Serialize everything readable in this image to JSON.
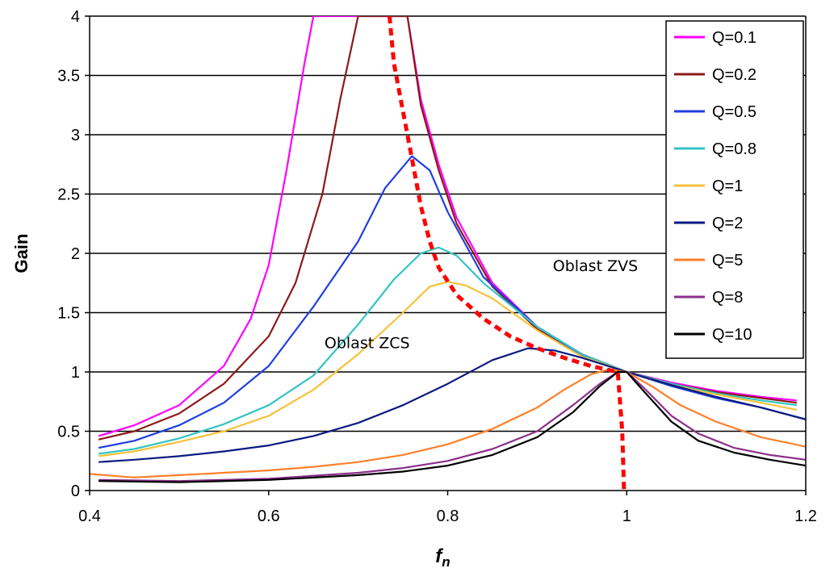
{
  "chart_data": {
    "type": "line",
    "xlabel": "f",
    "xlabel_sub": "n",
    "ylabel": "Gain",
    "xlim": [
      0.4,
      1.2
    ],
    "ylim": [
      0,
      4
    ],
    "x_ticks": [
      "0.4",
      "0.6",
      "0.8",
      "1",
      "1.2"
    ],
    "y_ticks": [
      "0",
      "0.5",
      "1",
      "1.5",
      "2",
      "2.5",
      "3",
      "3.5",
      "4"
    ],
    "grid": "horizontal",
    "legend_position": "right",
    "annotations": [
      {
        "text": "Oblast ZVS",
        "x": 0.965,
        "y": 1.85
      },
      {
        "text": "Oblast ZCS",
        "x": 0.71,
        "y": 1.2
      }
    ],
    "series": [
      {
        "name": "Q=0.1",
        "color": "#ff00ff",
        "points": [
          [
            0.41,
            0.46
          ],
          [
            0.45,
            0.55
          ],
          [
            0.5,
            0.72
          ],
          [
            0.55,
            1.05
          ],
          [
            0.58,
            1.45
          ],
          [
            0.6,
            1.9
          ],
          [
            0.62,
            2.7
          ],
          [
            0.64,
            3.6
          ],
          [
            0.65,
            4.0
          ],
          [
            0.755,
            4.0
          ],
          [
            0.77,
            3.3
          ],
          [
            0.79,
            2.75
          ],
          [
            0.81,
            2.3
          ],
          [
            0.85,
            1.75
          ],
          [
            0.9,
            1.38
          ],
          [
            0.95,
            1.15
          ],
          [
            1.0,
            1.0
          ],
          [
            1.05,
            0.91
          ],
          [
            1.1,
            0.84
          ],
          [
            1.15,
            0.79
          ],
          [
            1.19,
            0.76
          ]
        ]
      },
      {
        "name": "Q=0.2",
        "color": "#8b1a1a",
        "points": [
          [
            0.41,
            0.43
          ],
          [
            0.45,
            0.5
          ],
          [
            0.5,
            0.65
          ],
          [
            0.55,
            0.9
          ],
          [
            0.6,
            1.3
          ],
          [
            0.63,
            1.75
          ],
          [
            0.66,
            2.5
          ],
          [
            0.68,
            3.3
          ],
          [
            0.7,
            4.0
          ],
          [
            0.755,
            4.0
          ],
          [
            0.77,
            3.25
          ],
          [
            0.79,
            2.7
          ],
          [
            0.81,
            2.25
          ],
          [
            0.85,
            1.72
          ],
          [
            0.9,
            1.36
          ],
          [
            0.95,
            1.15
          ],
          [
            1.0,
            1.0
          ],
          [
            1.05,
            0.9
          ],
          [
            1.1,
            0.83
          ],
          [
            1.15,
            0.78
          ],
          [
            1.19,
            0.74
          ]
        ]
      },
      {
        "name": "Q=0.5",
        "color": "#1f3fe0",
        "points": [
          [
            0.41,
            0.36
          ],
          [
            0.45,
            0.42
          ],
          [
            0.5,
            0.55
          ],
          [
            0.55,
            0.74
          ],
          [
            0.6,
            1.05
          ],
          [
            0.65,
            1.55
          ],
          [
            0.7,
            2.1
          ],
          [
            0.73,
            2.55
          ],
          [
            0.76,
            2.82
          ],
          [
            0.78,
            2.7
          ],
          [
            0.8,
            2.35
          ],
          [
            0.84,
            1.8
          ],
          [
            0.9,
            1.38
          ],
          [
            0.95,
            1.14
          ],
          [
            1.0,
            1.0
          ],
          [
            1.05,
            0.88
          ],
          [
            1.1,
            0.78
          ],
          [
            1.15,
            0.7
          ],
          [
            1.2,
            0.6
          ]
        ]
      },
      {
        "name": "Q=0.8",
        "color": "#33c4c4",
        "points": [
          [
            0.41,
            0.31
          ],
          [
            0.45,
            0.35
          ],
          [
            0.5,
            0.44
          ],
          [
            0.55,
            0.56
          ],
          [
            0.6,
            0.72
          ],
          [
            0.65,
            0.97
          ],
          [
            0.7,
            1.4
          ],
          [
            0.74,
            1.78
          ],
          [
            0.77,
            2.0
          ],
          [
            0.79,
            2.05
          ],
          [
            0.81,
            1.98
          ],
          [
            0.84,
            1.75
          ],
          [
            0.9,
            1.38
          ],
          [
            0.95,
            1.15
          ],
          [
            1.0,
            1.0
          ],
          [
            1.05,
            0.9
          ],
          [
            1.1,
            0.82
          ],
          [
            1.15,
            0.76
          ],
          [
            1.19,
            0.72
          ]
        ]
      },
      {
        "name": "Q=1",
        "color": "#f7c23a",
        "points": [
          [
            0.41,
            0.29
          ],
          [
            0.45,
            0.33
          ],
          [
            0.5,
            0.41
          ],
          [
            0.55,
            0.5
          ],
          [
            0.6,
            0.63
          ],
          [
            0.65,
            0.85
          ],
          [
            0.7,
            1.15
          ],
          [
            0.75,
            1.5
          ],
          [
            0.78,
            1.72
          ],
          [
            0.8,
            1.76
          ],
          [
            0.82,
            1.73
          ],
          [
            0.85,
            1.62
          ],
          [
            0.9,
            1.35
          ],
          [
            0.95,
            1.13
          ],
          [
            1.0,
            1.0
          ],
          [
            1.05,
            0.89
          ],
          [
            1.1,
            0.81
          ],
          [
            1.15,
            0.74
          ],
          [
            1.19,
            0.68
          ]
        ]
      },
      {
        "name": "Q=2",
        "color": "#0a1a80",
        "points": [
          [
            0.41,
            0.24
          ],
          [
            0.45,
            0.26
          ],
          [
            0.5,
            0.29
          ],
          [
            0.55,
            0.33
          ],
          [
            0.6,
            0.38
          ],
          [
            0.65,
            0.46
          ],
          [
            0.7,
            0.57
          ],
          [
            0.75,
            0.72
          ],
          [
            0.8,
            0.9
          ],
          [
            0.85,
            1.1
          ],
          [
            0.89,
            1.2
          ],
          [
            0.92,
            1.18
          ],
          [
            0.95,
            1.12
          ],
          [
            1.0,
            1.0
          ],
          [
            1.05,
            0.89
          ],
          [
            1.1,
            0.79
          ],
          [
            1.15,
            0.7
          ],
          [
            1.2,
            0.6
          ]
        ]
      },
      {
        "name": "Q=5",
        "color": "#ff7f2a",
        "points": [
          [
            0.4,
            0.14
          ],
          [
            0.45,
            0.11
          ],
          [
            0.5,
            0.13
          ],
          [
            0.55,
            0.15
          ],
          [
            0.6,
            0.17
          ],
          [
            0.65,
            0.2
          ],
          [
            0.7,
            0.24
          ],
          [
            0.75,
            0.3
          ],
          [
            0.8,
            0.39
          ],
          [
            0.85,
            0.52
          ],
          [
            0.9,
            0.7
          ],
          [
            0.93,
            0.85
          ],
          [
            0.96,
            0.98
          ],
          [
            0.98,
            1.02
          ],
          [
            1.0,
            1.0
          ],
          [
            1.03,
            0.87
          ],
          [
            1.06,
            0.72
          ],
          [
            1.1,
            0.58
          ],
          [
            1.15,
            0.45
          ],
          [
            1.2,
            0.37
          ]
        ]
      },
      {
        "name": "Q=8",
        "color": "#8b2f8b",
        "points": [
          [
            0.41,
            0.09
          ],
          [
            0.5,
            0.08
          ],
          [
            0.6,
            0.1
          ],
          [
            0.7,
            0.15
          ],
          [
            0.75,
            0.19
          ],
          [
            0.8,
            0.25
          ],
          [
            0.85,
            0.35
          ],
          [
            0.9,
            0.5
          ],
          [
            0.94,
            0.72
          ],
          [
            0.97,
            0.9
          ],
          [
            0.99,
            1.0
          ],
          [
            1.0,
            1.0
          ],
          [
            1.02,
            0.86
          ],
          [
            1.05,
            0.63
          ],
          [
            1.08,
            0.48
          ],
          [
            1.12,
            0.36
          ],
          [
            1.16,
            0.3
          ],
          [
            1.2,
            0.26
          ]
        ]
      },
      {
        "name": "Q=10",
        "color": "#000000",
        "points": [
          [
            0.41,
            0.08
          ],
          [
            0.5,
            0.07
          ],
          [
            0.6,
            0.09
          ],
          [
            0.7,
            0.13
          ],
          [
            0.75,
            0.16
          ],
          [
            0.8,
            0.21
          ],
          [
            0.85,
            0.3
          ],
          [
            0.9,
            0.45
          ],
          [
            0.94,
            0.66
          ],
          [
            0.97,
            0.88
          ],
          [
            0.99,
            1.0
          ],
          [
            1.0,
            1.0
          ],
          [
            1.02,
            0.83
          ],
          [
            1.05,
            0.58
          ],
          [
            1.08,
            0.42
          ],
          [
            1.12,
            0.32
          ],
          [
            1.16,
            0.26
          ],
          [
            1.2,
            0.21
          ]
        ]
      },
      {
        "name": "",
        "color": "#ff0000",
        "dashed": true,
        "points": [
          [
            0.735,
            4.0
          ],
          [
            0.74,
            3.6
          ],
          [
            0.745,
            3.4
          ],
          [
            0.75,
            3.2
          ],
          [
            0.76,
            2.8
          ],
          [
            0.77,
            2.4
          ],
          [
            0.78,
            2.1
          ],
          [
            0.79,
            1.88
          ],
          [
            0.81,
            1.65
          ],
          [
            0.84,
            1.45
          ],
          [
            0.87,
            1.3
          ],
          [
            0.9,
            1.2
          ],
          [
            0.93,
            1.12
          ],
          [
            0.96,
            1.05
          ],
          [
            0.99,
            1.0
          ],
          [
            0.995,
            0.5
          ],
          [
            0.997,
            0.0
          ]
        ]
      }
    ]
  }
}
